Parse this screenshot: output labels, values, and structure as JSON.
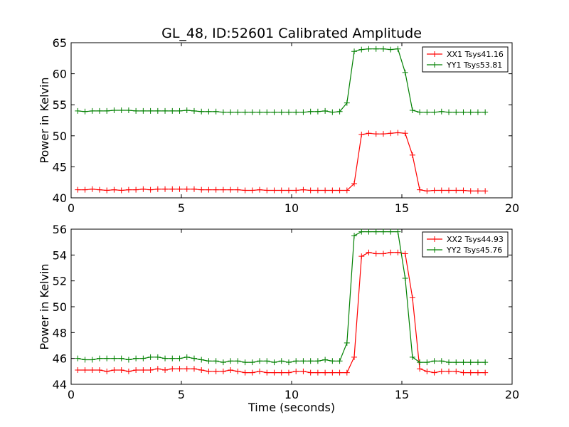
{
  "chart_data": [
    {
      "type": "line",
      "title": "GL_48, ID:52601 Calibrated Amplitude",
      "xlabel": "",
      "ylabel": "Power in Kelvin",
      "xlim": [
        0,
        20
      ],
      "ylim": [
        40,
        65
      ],
      "xticks": [
        "0",
        "5",
        "10",
        "15",
        "20"
      ],
      "yticks": [
        "40",
        "45",
        "50",
        "55",
        "60",
        "65"
      ],
      "grid": false,
      "legend_position": "top-right",
      "x": [
        0.3,
        0.63,
        0.96,
        1.29,
        1.62,
        1.95,
        2.28,
        2.61,
        2.94,
        3.27,
        3.6,
        3.93,
        4.26,
        4.59,
        4.92,
        5.25,
        5.58,
        5.91,
        6.24,
        6.57,
        6.9,
        7.23,
        7.56,
        7.89,
        8.22,
        8.55,
        8.88,
        9.21,
        9.54,
        9.87,
        10.2,
        10.53,
        10.86,
        11.19,
        11.52,
        11.85,
        12.18,
        12.51,
        12.84,
        13.17,
        13.5,
        13.83,
        14.16,
        14.49,
        14.82,
        15.15,
        15.48,
        15.81,
        16.14,
        16.47,
        16.8,
        17.13,
        17.46,
        17.79,
        18.12,
        18.45,
        18.78
      ],
      "series": [
        {
          "name": "XX1 Tsys41.16",
          "color": "#ff0000",
          "values": [
            41.3,
            41.3,
            41.4,
            41.3,
            41.2,
            41.3,
            41.2,
            41.3,
            41.3,
            41.4,
            41.3,
            41.4,
            41.4,
            41.4,
            41.4,
            41.4,
            41.4,
            41.3,
            41.3,
            41.3,
            41.3,
            41.3,
            41.3,
            41.2,
            41.2,
            41.3,
            41.2,
            41.2,
            41.2,
            41.2,
            41.2,
            41.3,
            41.2,
            41.2,
            41.2,
            41.2,
            41.2,
            41.2,
            42.3,
            50.2,
            50.4,
            50.3,
            50.3,
            50.4,
            50.5,
            50.4,
            46.9,
            41.3,
            41.1,
            41.2,
            41.2,
            41.2,
            41.2,
            41.2,
            41.1,
            41.1,
            41.1
          ]
        },
        {
          "name": "YY1 Tsys53.81",
          "color": "#008000",
          "values": [
            54.0,
            53.9,
            54.0,
            54.0,
            54.0,
            54.1,
            54.1,
            54.1,
            54.0,
            54.0,
            54.0,
            54.0,
            54.0,
            54.0,
            54.0,
            54.1,
            54.0,
            53.9,
            53.9,
            53.9,
            53.8,
            53.8,
            53.8,
            53.8,
            53.8,
            53.8,
            53.8,
            53.8,
            53.8,
            53.8,
            53.8,
            53.8,
            53.9,
            53.9,
            54.0,
            53.8,
            53.9,
            55.3,
            63.6,
            63.9,
            64.0,
            64.0,
            64.0,
            63.9,
            64.0,
            60.2,
            54.1,
            53.8,
            53.8,
            53.8,
            53.9,
            53.8,
            53.8,
            53.8,
            53.8,
            53.8,
            53.8
          ]
        }
      ]
    },
    {
      "type": "line",
      "title": "",
      "xlabel": "Time (seconds)",
      "ylabel": "Power in Kelvin",
      "xlim": [
        0,
        20
      ],
      "ylim": [
        44,
        56
      ],
      "xticks": [
        "0",
        "5",
        "10",
        "15",
        "20"
      ],
      "yticks": [
        "44",
        "46",
        "48",
        "50",
        "52",
        "54",
        "56"
      ],
      "grid": false,
      "legend_position": "top-right",
      "x": [
        0.3,
        0.63,
        0.96,
        1.29,
        1.62,
        1.95,
        2.28,
        2.61,
        2.94,
        3.27,
        3.6,
        3.93,
        4.26,
        4.59,
        4.92,
        5.25,
        5.58,
        5.91,
        6.24,
        6.57,
        6.9,
        7.23,
        7.56,
        7.89,
        8.22,
        8.55,
        8.88,
        9.21,
        9.54,
        9.87,
        10.2,
        10.53,
        10.86,
        11.19,
        11.52,
        11.85,
        12.18,
        12.51,
        12.84,
        13.17,
        13.5,
        13.83,
        14.16,
        14.49,
        14.82,
        15.15,
        15.48,
        15.81,
        16.14,
        16.47,
        16.8,
        17.13,
        17.46,
        17.79,
        18.12,
        18.45,
        18.78
      ],
      "series": [
        {
          "name": "XX2 Tsys44.93",
          "color": "#ff0000",
          "values": [
            45.1,
            45.1,
            45.1,
            45.1,
            45.0,
            45.1,
            45.1,
            45.0,
            45.1,
            45.1,
            45.1,
            45.2,
            45.1,
            45.2,
            45.2,
            45.2,
            45.2,
            45.1,
            45.0,
            45.0,
            45.0,
            45.1,
            45.0,
            44.9,
            44.9,
            45.0,
            44.9,
            44.9,
            44.9,
            44.9,
            45.0,
            45.0,
            44.9,
            44.9,
            44.9,
            44.9,
            44.9,
            44.9,
            46.1,
            53.9,
            54.2,
            54.1,
            54.1,
            54.2,
            54.2,
            54.1,
            50.7,
            45.2,
            45.0,
            44.9,
            45.0,
            45.0,
            45.0,
            44.9,
            44.9,
            44.9,
            44.9
          ]
        },
        {
          "name": "YY2 Tsys45.76",
          "color": "#008000",
          "values": [
            46.0,
            45.9,
            45.9,
            46.0,
            46.0,
            46.0,
            46.0,
            45.9,
            46.0,
            46.0,
            46.1,
            46.1,
            46.0,
            46.0,
            46.0,
            46.1,
            46.0,
            45.9,
            45.8,
            45.8,
            45.7,
            45.8,
            45.8,
            45.7,
            45.7,
            45.8,
            45.8,
            45.7,
            45.8,
            45.7,
            45.8,
            45.8,
            45.8,
            45.8,
            45.9,
            45.8,
            45.8,
            47.2,
            55.5,
            55.8,
            55.8,
            55.8,
            55.8,
            55.8,
            55.8,
            52.2,
            46.1,
            45.7,
            45.7,
            45.8,
            45.8,
            45.7,
            45.7,
            45.7,
            45.7,
            45.7,
            45.7
          ]
        }
      ]
    }
  ]
}
